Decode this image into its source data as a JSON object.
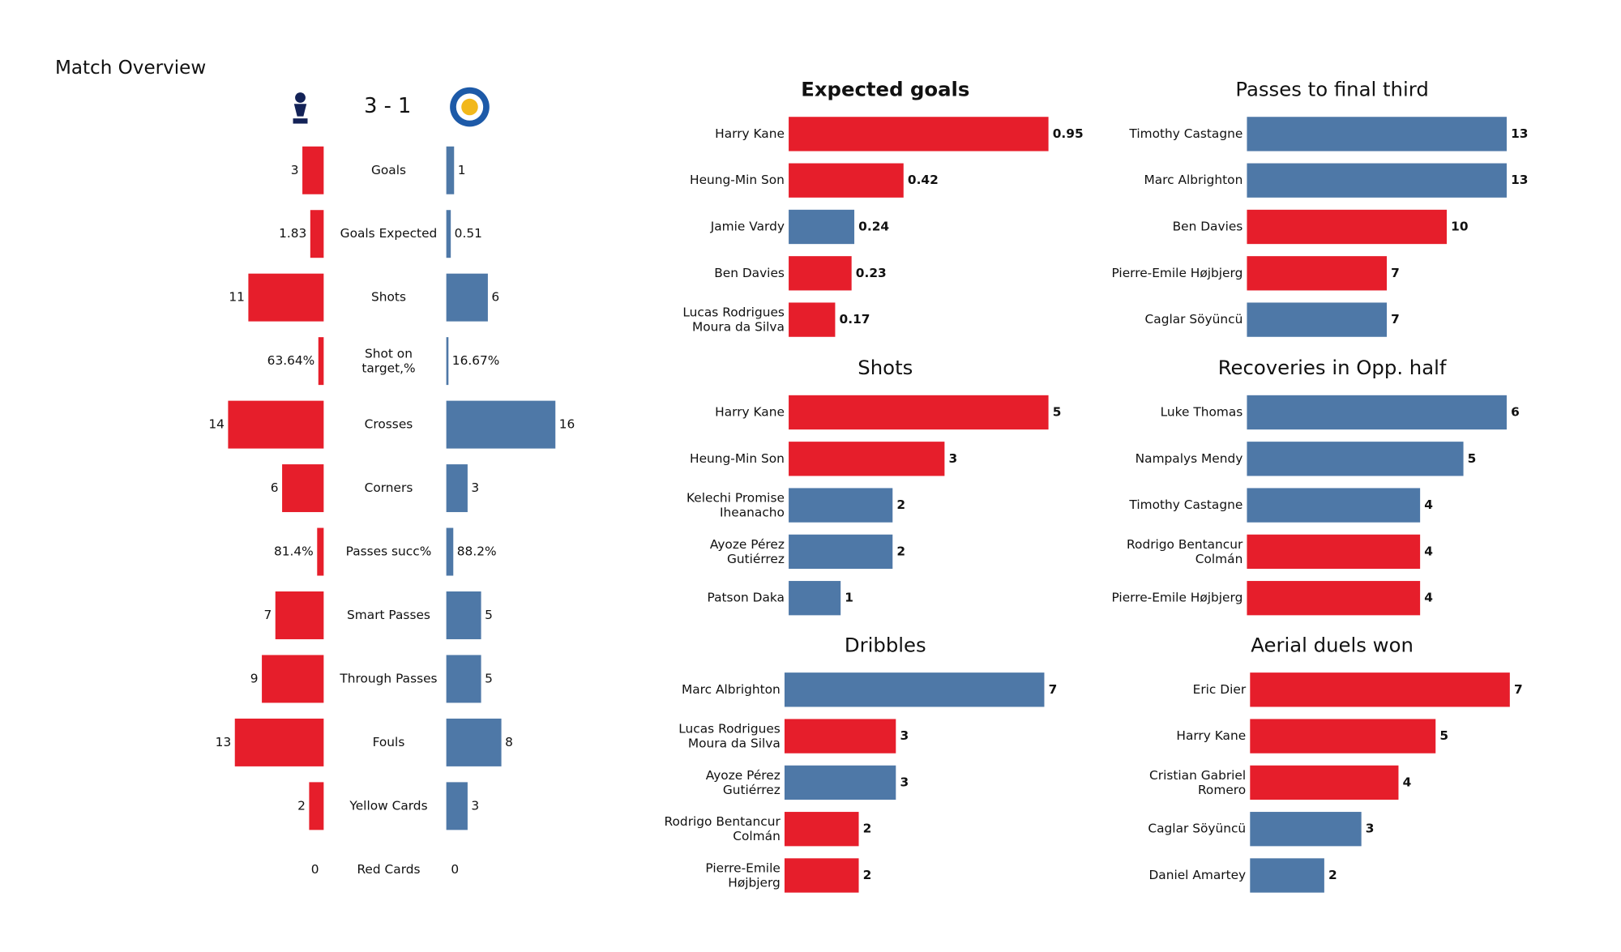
{
  "chart_data": [
    {
      "type": "diverging_bar",
      "title": "Match Overview",
      "score": "3 - 1",
      "categories": [
        "Goals",
        "Goals Expected",
        "Shots",
        "Shot on\ntarget,%",
        "Crosses",
        "Corners",
        "Passes succ%",
        "Smart Passes",
        "Through Passes",
        "Fouls",
        "Yellow Cards",
        "Red Cards"
      ],
      "series": [
        {
          "color": "#e61e2b",
          "values": [
            3,
            1.83,
            11,
            0.6364,
            14,
            6,
            0.814,
            7,
            9,
            13,
            2,
            0
          ],
          "value_labels": [
            "3",
            "1.83",
            "11",
            "63.64%",
            "14",
            "6",
            "81.4%",
            "7",
            "9",
            "13",
            "2",
            "0"
          ]
        },
        {
          "color": "#4e78a7",
          "values": [
            1,
            0.51,
            6,
            0.1667,
            16,
            3,
            0.882,
            5,
            5,
            8,
            3,
            0
          ],
          "value_labels": [
            "1",
            "0.51",
            "6",
            "16.67%",
            "16",
            "3",
            "88.2%",
            "5",
            "5",
            "8",
            "3",
            "0"
          ]
        }
      ]
    },
    {
      "type": "barh",
      "title": "Expected goals",
      "categories": [
        "Harry Kane",
        "Heung-Min Son",
        "Jamie Vardy",
        "Ben Davies",
        "Lucas Rodrigues\nMoura da Silva"
      ],
      "values": [
        0.95,
        0.42,
        0.24,
        0.23,
        0.17
      ],
      "colors": [
        "#e61e2b",
        "#e61e2b",
        "#4e78a7",
        "#e61e2b",
        "#e61e2b"
      ]
    },
    {
      "type": "barh",
      "title": "Passes to final third",
      "categories": [
        "Timothy Castagne",
        "Marc Albrighton",
        "Ben Davies",
        "Pierre-Emile Højbjerg",
        "Caglar Söyüncü"
      ],
      "values": [
        13,
        13,
        10,
        7,
        7
      ],
      "colors": [
        "#4e78a7",
        "#4e78a7",
        "#e61e2b",
        "#e61e2b",
        "#4e78a7"
      ]
    },
    {
      "type": "barh",
      "title": "Shots",
      "categories": [
        "Harry Kane",
        "Heung-Min Son",
        "Kelechi Promise\nIheanacho",
        "Ayoze Pérez\nGutiérrez",
        "Patson Daka"
      ],
      "values": [
        5,
        3,
        2,
        2,
        1
      ],
      "colors": [
        "#e61e2b",
        "#e61e2b",
        "#4e78a7",
        "#4e78a7",
        "#4e78a7"
      ]
    },
    {
      "type": "barh",
      "title": "Recoveries in Opp. half",
      "categories": [
        "Luke Thomas",
        "Nampalys Mendy",
        "Timothy Castagne",
        "Rodrigo Bentancur\nColmán",
        "Pierre-Emile Højbjerg"
      ],
      "values": [
        6,
        5,
        4,
        4,
        4
      ],
      "colors": [
        "#4e78a7",
        "#4e78a7",
        "#4e78a7",
        "#e61e2b",
        "#e61e2b"
      ]
    },
    {
      "type": "barh",
      "title": "Dribbles",
      "categories": [
        "Marc Albrighton",
        "Lucas Rodrigues\nMoura da Silva",
        "Ayoze Pérez\nGutiérrez",
        "Rodrigo Bentancur\nColmán",
        "Pierre-Emile\nHøjbjerg"
      ],
      "values": [
        7,
        3,
        3,
        2,
        2
      ],
      "colors": [
        "#4e78a7",
        "#e61e2b",
        "#4e78a7",
        "#e61e2b",
        "#e61e2b"
      ]
    },
    {
      "type": "barh",
      "title": "Aerial duels won",
      "categories": [
        "Eric Dier",
        "Harry Kane",
        "Cristian Gabriel\nRomero",
        "Caglar Söyüncü",
        "Daniel Amartey"
      ],
      "values": [
        7,
        5,
        4,
        3,
        2
      ],
      "colors": [
        "#e61e2b",
        "#e61e2b",
        "#e61e2b",
        "#4e78a7",
        "#4e78a7"
      ]
    }
  ]
}
